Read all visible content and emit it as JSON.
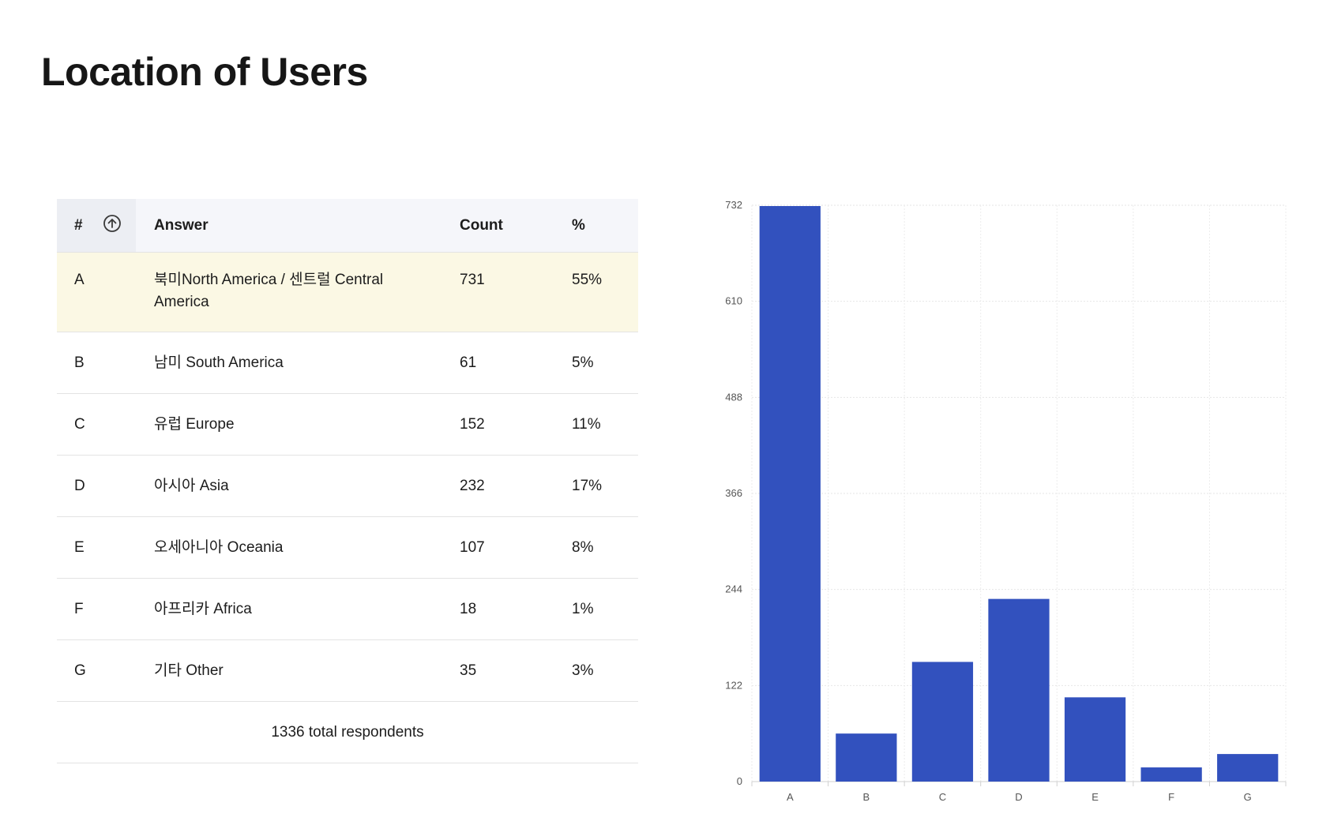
{
  "page": {
    "title": "Location of Users"
  },
  "table": {
    "headers": {
      "number": "#",
      "answer": "Answer",
      "count": "Count",
      "percent": "%"
    },
    "rows": [
      {
        "letter": "A",
        "answer": "북미North America / 센트럴 Central America",
        "count": "731",
        "percent": "55%"
      },
      {
        "letter": "B",
        "answer": "남미 South America",
        "count": "61",
        "percent": "5%"
      },
      {
        "letter": "C",
        "answer": "유럽 Europe",
        "count": "152",
        "percent": "11%"
      },
      {
        "letter": "D",
        "answer": "아시아 Asia",
        "count": "232",
        "percent": "17%"
      },
      {
        "letter": "E",
        "answer": "오세아니아 Oceania",
        "count": "107",
        "percent": "8%"
      },
      {
        "letter": "F",
        "answer": "아프리카 Africa",
        "count": "18",
        "percent": "1%"
      },
      {
        "letter": "G",
        "answer": "기타 Other",
        "count": "35",
        "percent": "3%"
      }
    ],
    "total": "1336 total respondents",
    "sort_icon": "arrow-up-circle-icon"
  },
  "chart_data": {
    "type": "bar",
    "categories": [
      "A",
      "B",
      "C",
      "D",
      "E",
      "F",
      "G"
    ],
    "values": [
      731,
      61,
      152,
      232,
      107,
      18,
      35
    ],
    "ylim": [
      0,
      732
    ],
    "yticks": [
      "0",
      "122",
      "244",
      "366",
      "488",
      "610",
      "732"
    ],
    "grid": true,
    "bar_color": "#3251be"
  }
}
